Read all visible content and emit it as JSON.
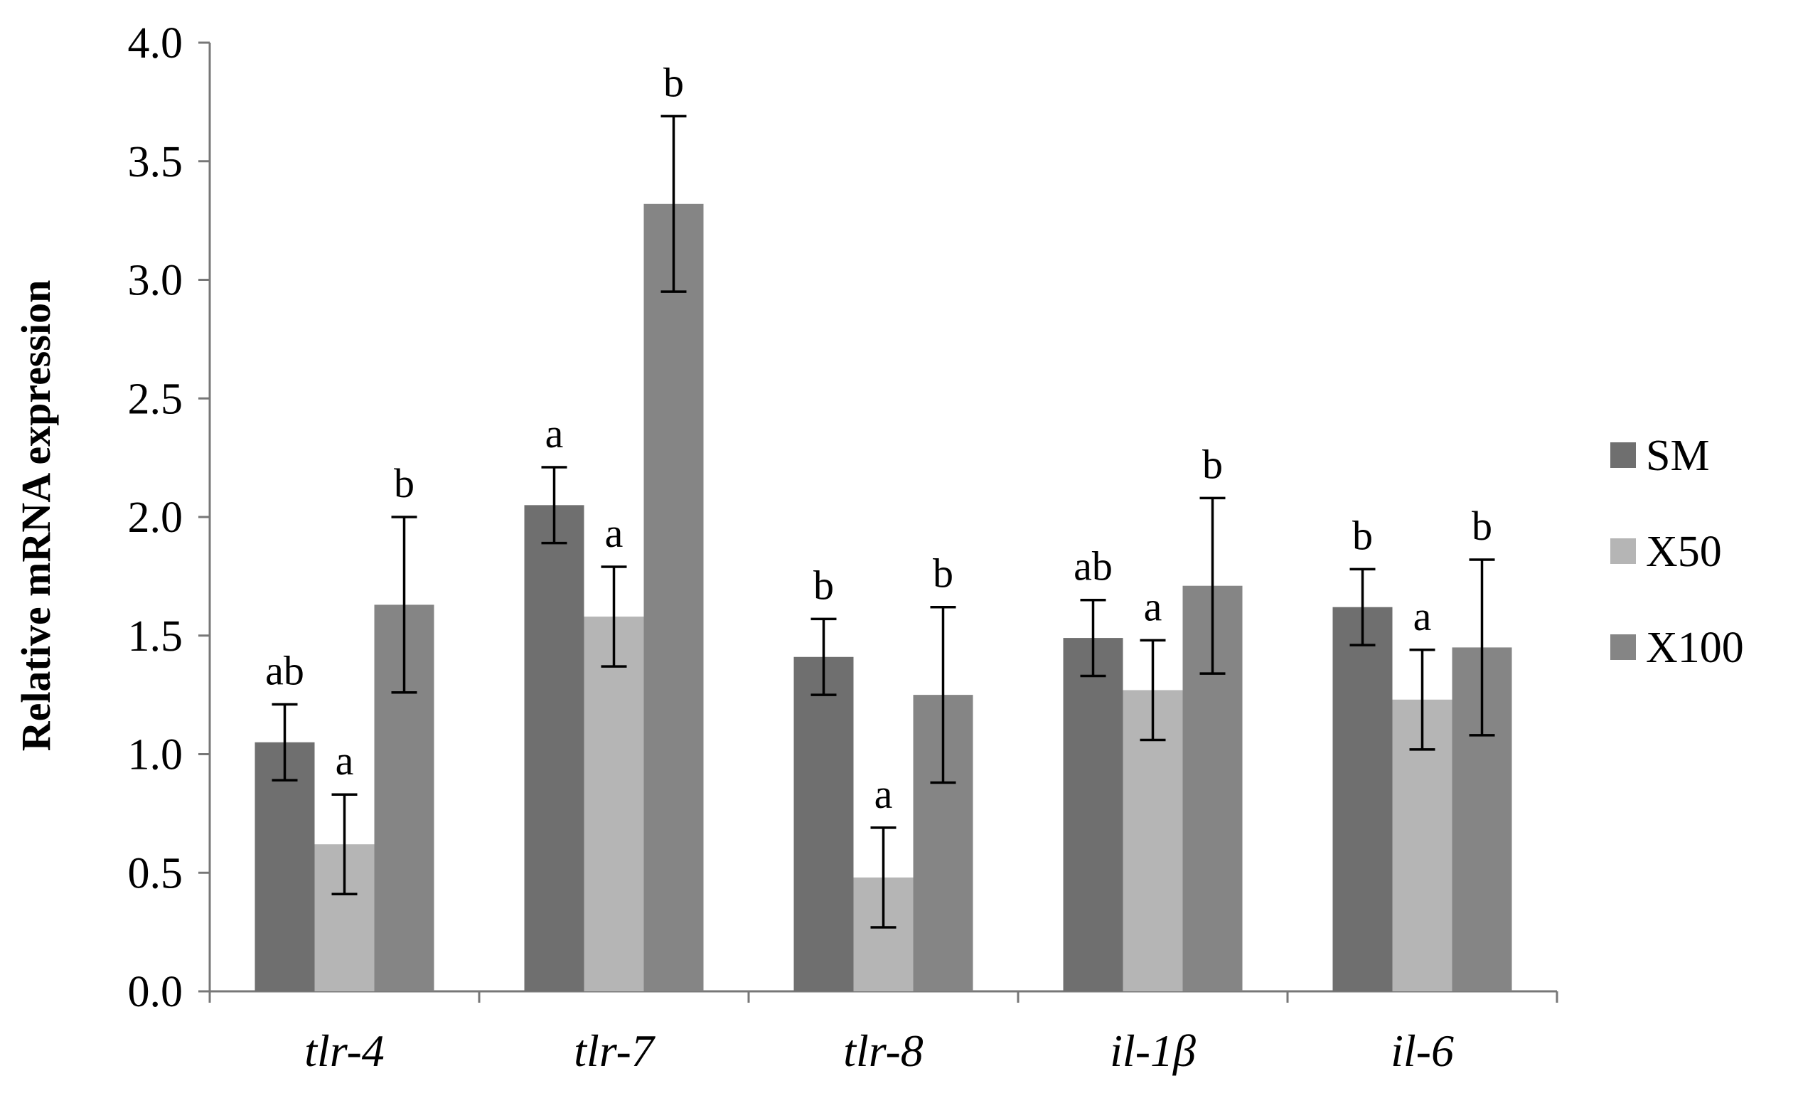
{
  "chart_data": {
    "type": "bar",
    "title": "",
    "xlabel": "",
    "ylabel": "Relative mRNA expression",
    "ylim": [
      0,
      4.0
    ],
    "yticks": [
      "0.0",
      "0.5",
      "1.0",
      "1.5",
      "2.0",
      "2.5",
      "3.0",
      "3.5",
      "4.0"
    ],
    "grid": false,
    "legend_position": "right",
    "categories": [
      "tlr-4",
      "tlr-7",
      "tlr-8",
      "il-1β",
      "il-6"
    ],
    "series": [
      {
        "name": "SM",
        "color": "#6f6f6f",
        "values": [
          1.05,
          2.05,
          1.41,
          1.49,
          1.62
        ],
        "errors": [
          0.16,
          0.16,
          0.16,
          0.16,
          0.16
        ],
        "labels": [
          "ab",
          "a",
          "b",
          "ab",
          "b"
        ]
      },
      {
        "name": "X50",
        "color": "#b5b5b5",
        "values": [
          0.62,
          1.58,
          0.48,
          1.27,
          1.23
        ],
        "errors": [
          0.21,
          0.21,
          0.21,
          0.21,
          0.21
        ],
        "labels": [
          "a",
          "a",
          "a",
          "a",
          "a"
        ]
      },
      {
        "name": "X100",
        "color": "#858585",
        "values": [
          1.63,
          3.32,
          1.25,
          1.71,
          1.45
        ],
        "errors": [
          0.37,
          0.37,
          0.37,
          0.37,
          0.37
        ],
        "labels": [
          "b",
          "b",
          "b",
          "b",
          "b"
        ]
      }
    ]
  }
}
